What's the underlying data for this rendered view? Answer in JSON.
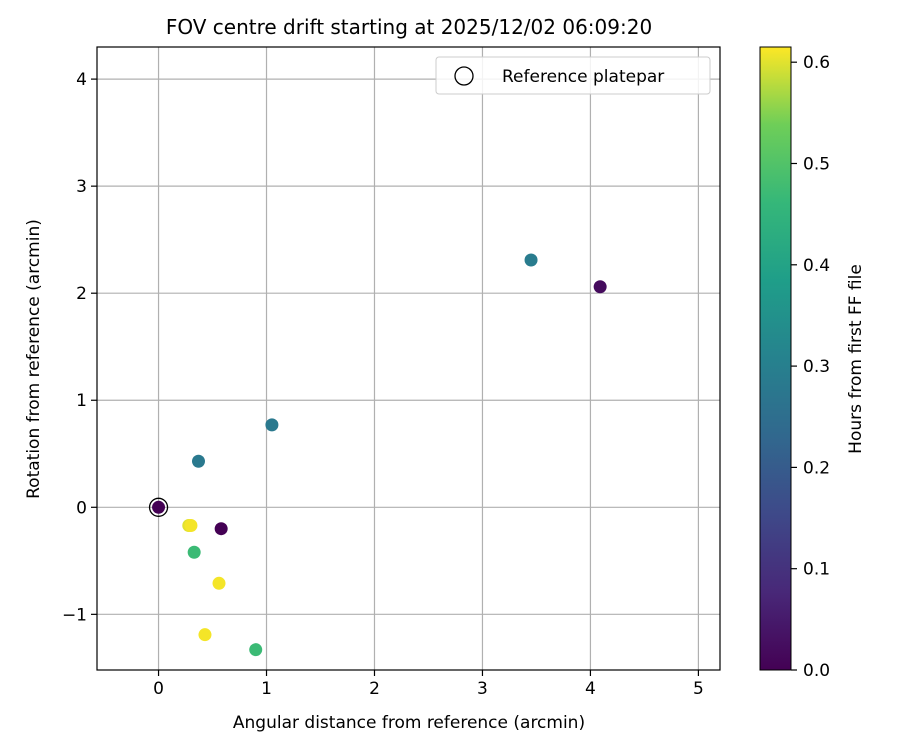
{
  "chart_data": {
    "type": "scatter",
    "title": "FOV centre drift starting at 2025/12/02 06:09:20",
    "xlabel": "Angular distance from reference (arcmin)",
    "ylabel": "Rotation from reference (arcmin)",
    "xlim": [
      -0.57,
      5.2
    ],
    "ylim": [
      -1.52,
      4.3
    ],
    "xticks": [
      0,
      1,
      2,
      3,
      4,
      5
    ],
    "yticks": [
      -1,
      0,
      1,
      2,
      3,
      4
    ],
    "ytick_labels": [
      "−1",
      "0",
      "1",
      "2",
      "3",
      "4"
    ],
    "grid": true,
    "legend": {
      "position": "top-right",
      "entries": [
        "Reference platepar"
      ]
    },
    "reference_point": {
      "name": "Reference platepar",
      "x": 0.0,
      "y": 0.0
    },
    "colorbar": {
      "label": "Hours from first FF file",
      "colormap": "viridis",
      "range": [
        0.0,
        0.615
      ],
      "ticks": [
        0.0,
        0.1,
        0.2,
        0.3,
        0.4,
        0.5,
        0.6
      ],
      "tick_labels": [
        "0.0",
        "0.1",
        "0.2",
        "0.3",
        "0.4",
        "0.5",
        "0.6"
      ]
    },
    "points": [
      {
        "x": 0.0,
        "y": 0.0,
        "hours": 0.0
      },
      {
        "x": 0.58,
        "y": -0.2,
        "hours": 0.0
      },
      {
        "x": 4.09,
        "y": 2.06,
        "hours": 0.02
      },
      {
        "x": 0.37,
        "y": 0.43,
        "hours": 0.28
      },
      {
        "x": 1.05,
        "y": 0.77,
        "hours": 0.28
      },
      {
        "x": 3.45,
        "y": 2.31,
        "hours": 0.29
      },
      {
        "x": 0.33,
        "y": -0.42,
        "hours": 0.47
      },
      {
        "x": 0.9,
        "y": -1.33,
        "hours": 0.47
      },
      {
        "x": 0.28,
        "y": -0.17,
        "hours": 0.6
      },
      {
        "x": 0.3,
        "y": -0.17,
        "hours": 0.61
      },
      {
        "x": 0.56,
        "y": -0.71,
        "hours": 0.61
      },
      {
        "x": 0.43,
        "y": -1.19,
        "hours": 0.61
      }
    ]
  }
}
